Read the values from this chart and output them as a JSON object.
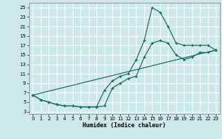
{
  "xlabel": "Humidex (Indice chaleur)",
  "bg_color": "#cce8e8",
  "grid_color": "#ffffff",
  "line_color": "#1a6b5a",
  "xlim": [
    -0.5,
    23.5
  ],
  "ylim": [
    2.5,
    26
  ],
  "yticks": [
    3,
    5,
    7,
    9,
    11,
    13,
    15,
    17,
    19,
    21,
    23,
    25
  ],
  "xticks": [
    0,
    1,
    2,
    3,
    4,
    5,
    6,
    7,
    8,
    9,
    10,
    11,
    12,
    13,
    14,
    15,
    16,
    17,
    18,
    19,
    20,
    21,
    22,
    23
  ],
  "line1_x": [
    0,
    1,
    2,
    3,
    4,
    5,
    6,
    7,
    8,
    9,
    10,
    11,
    12,
    13,
    14,
    15,
    16,
    17,
    18,
    19,
    20,
    21,
    22,
    23
  ],
  "line1_y": [
    6.5,
    5.5,
    5.0,
    4.5,
    4.2,
    4.2,
    4.0,
    4.0,
    4.0,
    7.5,
    9.5,
    10.5,
    11.0,
    14.0,
    18.0,
    25.0,
    24.0,
    21.0,
    17.5,
    17.0,
    17.0,
    17.0,
    17.0,
    16.0
  ],
  "line2_x": [
    0,
    1,
    2,
    3,
    4,
    5,
    6,
    7,
    8,
    9,
    10,
    11,
    12,
    13,
    14,
    15,
    16,
    17,
    18,
    19,
    20,
    21,
    22,
    23
  ],
  "line2_y": [
    6.5,
    5.5,
    5.0,
    4.5,
    4.2,
    4.2,
    4.0,
    4.0,
    4.0,
    4.2,
    8.0,
    9.0,
    10.0,
    10.5,
    14.5,
    17.5,
    18.0,
    17.5,
    15.0,
    14.0,
    14.5,
    15.5,
    15.5,
    16.0
  ],
  "line3_x": [
    0,
    23
  ],
  "line3_y": [
    6.5,
    16.0
  ]
}
